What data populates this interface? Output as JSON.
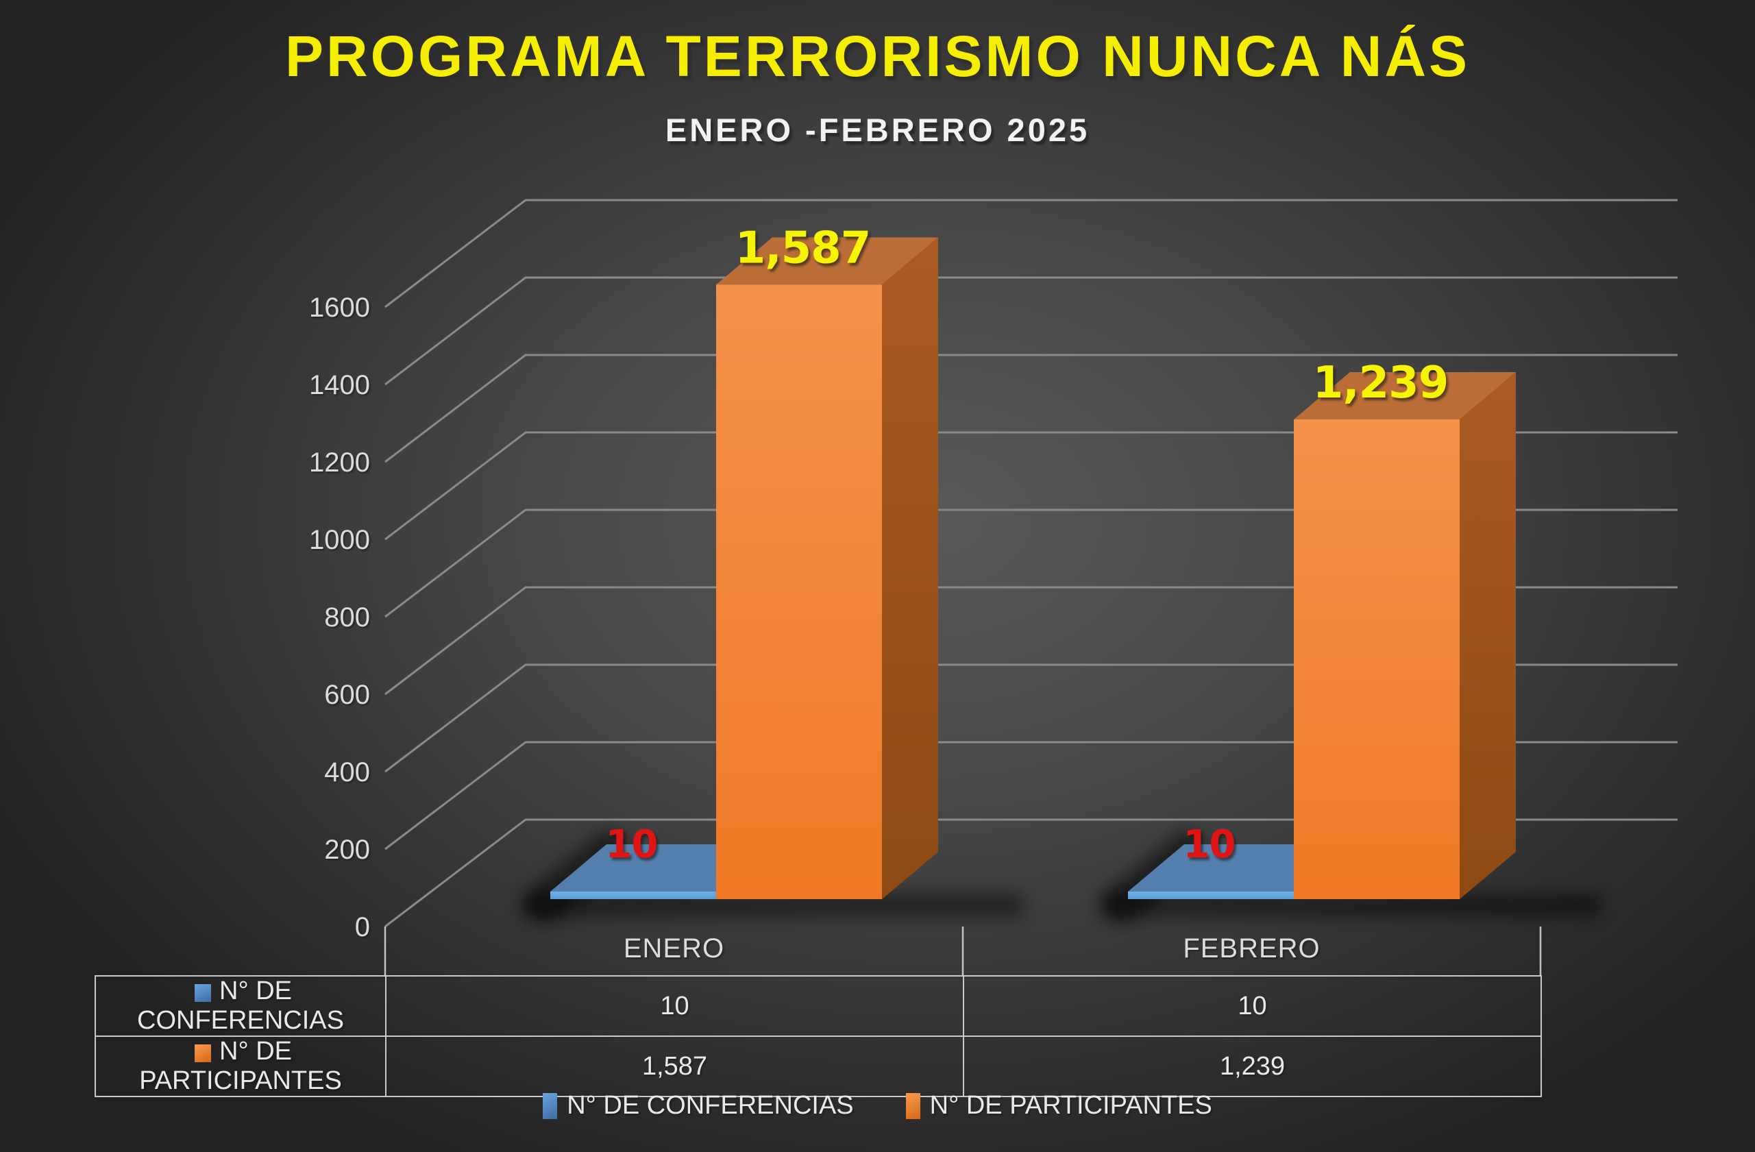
{
  "title": "PROGRAMA TERRORISMO NUNCA NÁS",
  "subtitle": "ENERO -FEBRERO 2025",
  "colors": {
    "background_center": "#595959",
    "background_edge": "#222222",
    "title_yellow": "#f5ee00",
    "subtitle_white": "#f2f2f2",
    "axis_text": "#dcdcdc",
    "gridline": "#8a8a8a",
    "axis_line": "#c3c3c3",
    "table_border": "#c9c9c9",
    "table_text": "#e9e9e9",
    "orange_front_top": "#f4914a",
    "orange_front_bottom": "#f07a26",
    "orange_side_top": "#aa5a22",
    "orange_side_bottom": "#8f4a14",
    "orange_top_face": "#ba6d36",
    "blue_top_face": "#547eab",
    "blue_front": "#5b9bd5",
    "blue_side": "#3f6e9e",
    "label_red": "#e11414",
    "label_yellow": "#f6f303",
    "legend_blue_light": "#6aa5dd",
    "legend_blue_dark": "#3d6ca3",
    "legend_orange_light": "#f79c52",
    "legend_orange_dark": "#d96614",
    "shadow": "#000000"
  },
  "chart_data": {
    "type": "bar",
    "variant": "3d-clustered-column",
    "title": "PROGRAMA TERRORISMO NUNCA NÁS",
    "subtitle": "ENERO -FEBRERO 2025",
    "categories": [
      "ENERO",
      "FEBRERO"
    ],
    "series": [
      {
        "name": "N° DE CONFERENCIAS",
        "color": "#5b9bd5",
        "values": [
          10,
          10
        ],
        "value_labels": [
          "10",
          "10"
        ],
        "label_color": "#e11414"
      },
      {
        "name": "N° DE PARTICIPANTES",
        "color": "#ed7d31",
        "values": [
          1587,
          1239
        ],
        "value_labels": [
          "1,587",
          "1,239"
        ],
        "label_color": "#f6f303"
      }
    ],
    "ylim": [
      0,
      1600
    ],
    "ytick_interval": 200,
    "yticks": [
      0,
      200,
      400,
      600,
      800,
      1000,
      1200,
      1400,
      1600
    ],
    "grid": true,
    "legend_position": "bottom"
  },
  "data_table": {
    "row_headers": [
      "N° DE CONFERENCIAS",
      "N° DE PARTICIPANTES"
    ],
    "rows": [
      [
        "10",
        "10"
      ],
      [
        "1,587",
        "1,239"
      ]
    ]
  },
  "legend": {
    "items": [
      {
        "label": "N° DE CONFERENCIAS",
        "color": "#5b9bd5"
      },
      {
        "label": "N° DE PARTICIPANTES",
        "color": "#ed7d31"
      }
    ]
  }
}
